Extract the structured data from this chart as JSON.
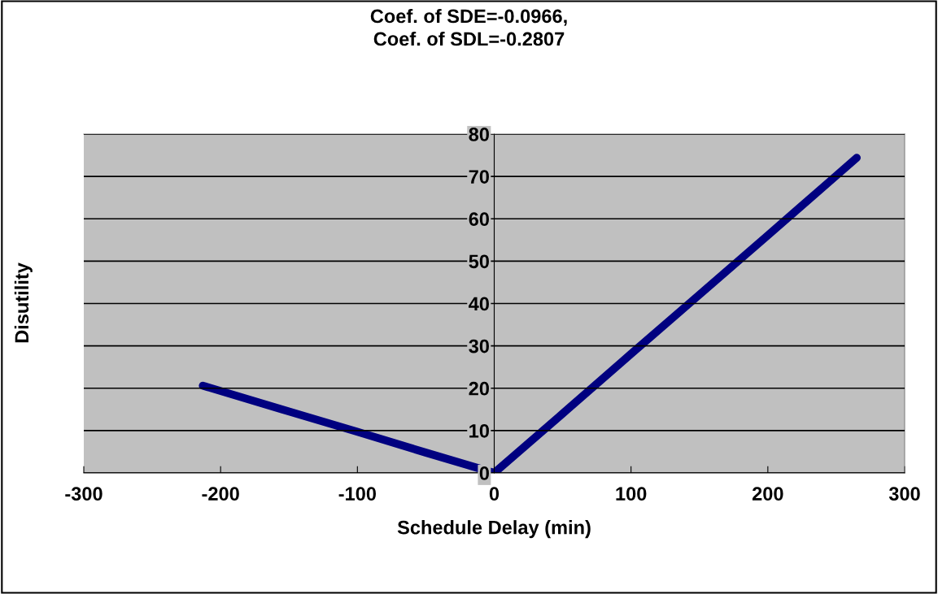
{
  "chart_data": {
    "type": "line",
    "title": "Coef. of SDE=-0.0966,\nCoef. of SDL=-0.2807",
    "xlabel": "Schedule Delay (min)",
    "ylabel": "Disutility",
    "series": [
      {
        "color": "#000080",
        "x": [
          -213,
          -150,
          -100,
          -50,
          0,
          50,
          100,
          150,
          200,
          265
        ],
        "values": [
          20.6,
          14.5,
          9.7,
          4.8,
          0,
          14.0,
          28.1,
          42.1,
          56.1,
          74.4
        ]
      }
    ],
    "xlim": [
      -300,
      300
    ],
    "xticks": [
      -300,
      -200,
      -100,
      0,
      100,
      200,
      300
    ],
    "ylim": [
      0,
      80
    ],
    "yticks": [
      0,
      10,
      20,
      30,
      40,
      50,
      60,
      70,
      80
    ],
    "grid": "y",
    "marker": "none",
    "line_style": "solid"
  }
}
